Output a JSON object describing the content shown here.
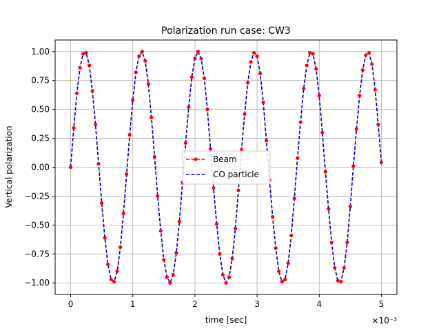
{
  "chart_data": {
    "type": "line",
    "title": "Polarization run case: CW3",
    "xlabel": "time [sec]",
    "ylabel": "Vertical polarization",
    "x_offset_label": "×10⁻³",
    "xlim": [
      -0.00025,
      0.00025
    ],
    "xlim_note": "",
    "x_range": [
      -0.00025,
      0.00525
    ],
    "ylim": [
      -1.1,
      1.1
    ],
    "grid": true,
    "legend_position": "center",
    "x_ticks": [
      0,
      0.001,
      0.002,
      0.003,
      0.004,
      0.005
    ],
    "x_tick_labels": [
      "0",
      "1",
      "2",
      "3",
      "4",
      "5"
    ],
    "y_ticks": [
      -1.0,
      -0.75,
      -0.5,
      -0.25,
      0.0,
      0.25,
      0.5,
      0.75,
      1.0
    ],
    "y_tick_labels": [
      "−1.00",
      "−0.75",
      "−0.50",
      "−0.25",
      "0.00",
      "0.25",
      "0.50",
      "0.75",
      "1.00"
    ],
    "series": [
      {
        "name": "Beam",
        "color": "#ff0000",
        "style": "dashed-markers",
        "x": [
          0,
          5e-05,
          0.0001,
          0.00015,
          0.0002,
          0.00025,
          0.0003,
          0.00035,
          0.0004,
          0.00045,
          0.0005,
          0.00055,
          0.0006,
          0.00065,
          0.0007,
          0.00075,
          0.0008,
          0.00085,
          0.0009,
          0.00095,
          0.001,
          0.00105,
          0.0011,
          0.00115,
          0.0012,
          0.00125,
          0.0013,
          0.00135,
          0.0014,
          0.00145,
          0.0015,
          0.00155,
          0.0016,
          0.00165,
          0.0017,
          0.00175,
          0.0018,
          0.00185,
          0.0019,
          0.00195,
          0.002,
          0.00205,
          0.0021,
          0.00215,
          0.0022,
          0.00225,
          0.0023,
          0.00235,
          0.0024,
          0.00245,
          0.0025,
          0.00255,
          0.0026,
          0.00265,
          0.0027,
          0.00275,
          0.0028,
          0.00285,
          0.0029,
          0.00295,
          0.003,
          0.00305,
          0.0031,
          0.00315,
          0.0032,
          0.00325,
          0.0033,
          0.00335,
          0.0034,
          0.00345,
          0.0035,
          0.00355,
          0.0036,
          0.00365,
          0.0037,
          0.00375,
          0.0038,
          0.00385,
          0.0039,
          0.00395,
          0.004,
          0.00405,
          0.0041,
          0.00415,
          0.0042,
          0.00425,
          0.0043,
          0.00435,
          0.0044,
          0.00445,
          0.0045,
          0.00455,
          0.0046,
          0.00465,
          0.0047,
          0.00475,
          0.0048,
          0.00485,
          0.0049,
          0.00495,
          0.005
        ],
        "y": [
          0.0,
          0.34,
          0.64,
          0.86,
          0.98,
          0.99,
          0.88,
          0.66,
          0.37,
          0.03,
          -0.31,
          -0.61,
          -0.84,
          -0.97,
          -0.99,
          -0.9,
          -0.69,
          -0.4,
          -0.06,
          0.28,
          0.58,
          0.82,
          0.96,
          1.0,
          0.92,
          0.72,
          0.43,
          0.09,
          -0.25,
          -0.55,
          -0.8,
          -0.95,
          -1.0,
          -0.93,
          -0.74,
          -0.47,
          -0.13,
          0.21,
          0.52,
          0.78,
          0.94,
          1.0,
          0.94,
          0.77,
          0.5,
          0.16,
          -0.18,
          -0.49,
          -0.75,
          -0.93,
          -1.0,
          -0.95,
          -0.79,
          -0.53,
          -0.2,
          0.15,
          0.46,
          0.73,
          0.91,
          0.99,
          0.96,
          0.81,
          0.56,
          0.23,
          -0.11,
          -0.43,
          -0.7,
          -0.9,
          -0.99,
          -0.97,
          -0.83,
          -0.59,
          -0.27,
          0.08,
          0.39,
          0.68,
          0.88,
          0.99,
          0.98,
          0.85,
          0.62,
          0.3,
          -0.04,
          -0.36,
          -0.65,
          -0.87,
          -0.98,
          -0.99,
          -0.87,
          -0.65,
          -0.34,
          0.01,
          0.33,
          0.62,
          0.84,
          0.97,
          0.99,
          0.89,
          0.67,
          0.37,
          0.04
        ]
      },
      {
        "name": "CO particle",
        "color": "#0000cc",
        "style": "dashed",
        "x": [
          0,
          5e-05,
          0.0001,
          0.00015,
          0.0002,
          0.00025,
          0.0003,
          0.00035,
          0.0004,
          0.00045,
          0.0005,
          0.00055,
          0.0006,
          0.00065,
          0.0007,
          0.00075,
          0.0008,
          0.00085,
          0.0009,
          0.00095,
          0.001,
          0.00105,
          0.0011,
          0.00115,
          0.0012,
          0.00125,
          0.0013,
          0.00135,
          0.0014,
          0.00145,
          0.0015,
          0.00155,
          0.0016,
          0.00165,
          0.0017,
          0.00175,
          0.0018,
          0.00185,
          0.0019,
          0.00195,
          0.002,
          0.00205,
          0.0021,
          0.00215,
          0.0022,
          0.00225,
          0.0023,
          0.00235,
          0.0024,
          0.00245,
          0.0025,
          0.00255,
          0.0026,
          0.00265,
          0.0027,
          0.00275,
          0.0028,
          0.00285,
          0.0029,
          0.00295,
          0.003,
          0.00305,
          0.0031,
          0.00315,
          0.0032,
          0.00325,
          0.0033,
          0.00335,
          0.0034,
          0.00345,
          0.0035,
          0.00355,
          0.0036,
          0.00365,
          0.0037,
          0.00375,
          0.0038,
          0.00385,
          0.0039,
          0.00395,
          0.004,
          0.00405,
          0.0041,
          0.00415,
          0.0042,
          0.00425,
          0.0043,
          0.00435,
          0.0044,
          0.00445,
          0.0045,
          0.00455,
          0.0046,
          0.00465,
          0.0047,
          0.00475,
          0.0048,
          0.00485,
          0.0049,
          0.00495,
          0.005
        ],
        "y": [
          0.0,
          0.34,
          0.64,
          0.86,
          0.98,
          0.99,
          0.88,
          0.66,
          0.37,
          0.03,
          -0.31,
          -0.61,
          -0.84,
          -0.97,
          -0.99,
          -0.9,
          -0.69,
          -0.4,
          -0.06,
          0.28,
          0.58,
          0.82,
          0.96,
          1.0,
          0.92,
          0.72,
          0.43,
          0.09,
          -0.25,
          -0.55,
          -0.8,
          -0.95,
          -1.0,
          -0.93,
          -0.74,
          -0.47,
          -0.13,
          0.21,
          0.52,
          0.78,
          0.94,
          1.0,
          0.94,
          0.77,
          0.5,
          0.16,
          -0.18,
          -0.49,
          -0.75,
          -0.93,
          -1.0,
          -0.95,
          -0.79,
          -0.53,
          -0.2,
          0.15,
          0.46,
          0.73,
          0.91,
          0.99,
          0.96,
          0.81,
          0.56,
          0.23,
          -0.11,
          -0.43,
          -0.7,
          -0.9,
          -0.99,
          -0.97,
          -0.83,
          -0.59,
          -0.27,
          0.08,
          0.39,
          0.68,
          0.88,
          0.99,
          0.98,
          0.85,
          0.62,
          0.3,
          -0.04,
          -0.36,
          -0.65,
          -0.87,
          -0.98,
          -0.99,
          -0.87,
          -0.65,
          -0.34,
          0.01,
          0.33,
          0.62,
          0.84,
          0.97,
          0.99,
          0.89,
          0.67,
          0.37,
          0.04
        ]
      }
    ]
  }
}
